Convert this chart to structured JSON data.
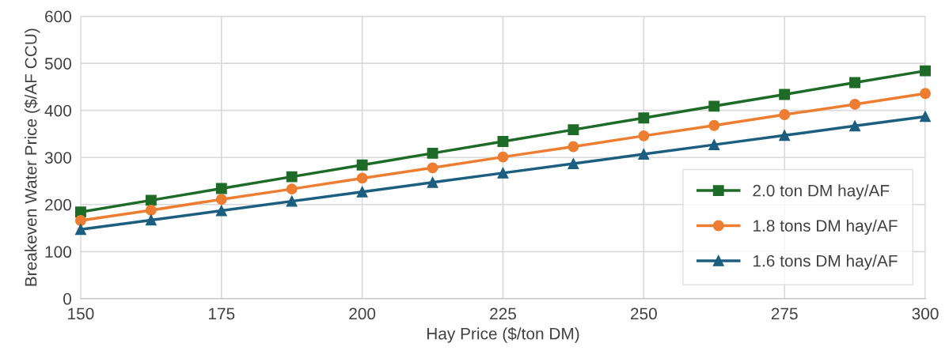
{
  "chart_data": {
    "type": "line",
    "xlabel": "Hay Price ($/ton DM)",
    "ylabel": "Breakeven Water Price ($/AF CCU)",
    "x": [
      150,
      162.5,
      175,
      187.5,
      200,
      212.5,
      225,
      237.5,
      250,
      262.5,
      275,
      287.5,
      300
    ],
    "series": [
      {
        "name": "2.0 ton DM hay/AF",
        "color": "#1e6b28",
        "marker": "square",
        "values": [
          184,
          209,
          234,
          259,
          284,
          309,
          334,
          359,
          384,
          409,
          434,
          459,
          484
        ]
      },
      {
        "name": "1.8 tons DM hay/AF",
        "color": "#ed7d31",
        "marker": "circle",
        "values": [
          166,
          188,
          211,
          233,
          256,
          278,
          301,
          323,
          346,
          368,
          391,
          413,
          436
        ]
      },
      {
        "name": "1.6 tons DM hay/AF",
        "color": "#1b5e80",
        "marker": "triangle",
        "values": [
          147,
          167,
          187,
          207,
          227,
          247,
          267,
          287,
          307,
          327,
          347,
          367,
          387
        ]
      }
    ],
    "xlim": [
      150,
      300
    ],
    "xticks": [
      150,
      175,
      200,
      225,
      250,
      275,
      300
    ],
    "ylim": [
      0,
      600
    ],
    "yticks": [
      0,
      100,
      200,
      300,
      400,
      500,
      600
    ],
    "grid": true,
    "legend": "bottom right",
    "line_style": "solid"
  }
}
